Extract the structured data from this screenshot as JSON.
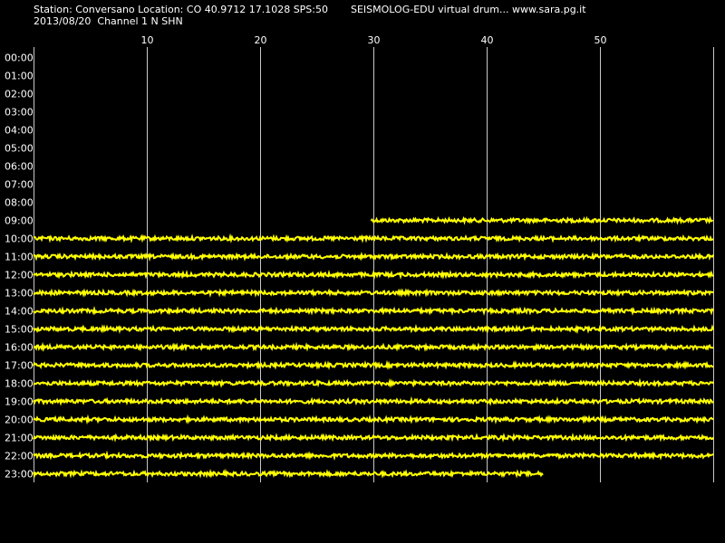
{
  "header": {
    "station_line": "Station: Conversano Location: CO 40.9712 17.1028 SPS:50",
    "software_line": "SEISMOLOG-EDU virtual drum... www.sara.pg.it",
    "date_line": "2013/08/20  Channel 1 N SHN"
  },
  "colors": {
    "background": "#000000",
    "grid": "#c8c8c8",
    "trace": "#ffff00",
    "text": "#ffffff"
  },
  "chart_data": {
    "type": "line",
    "title": "",
    "xlabel": "",
    "ylabel": "",
    "xlim": [
      0,
      60
    ],
    "x_ticks": [
      10,
      20,
      30,
      40,
      50
    ],
    "x_tick_labels": [
      "10",
      "20",
      "30",
      "40",
      "50"
    ],
    "grid": true,
    "rows": [
      {
        "label": "00:00",
        "start": null,
        "end": null
      },
      {
        "label": "01:00",
        "start": null,
        "end": null
      },
      {
        "label": "02:00",
        "start": null,
        "end": null
      },
      {
        "label": "03:00",
        "start": null,
        "end": null
      },
      {
        "label": "04:00",
        "start": null,
        "end": null
      },
      {
        "label": "05:00",
        "start": null,
        "end": null
      },
      {
        "label": "06:00",
        "start": null,
        "end": null
      },
      {
        "label": "07:00",
        "start": null,
        "end": null
      },
      {
        "label": "08:00",
        "start": null,
        "end": null
      },
      {
        "label": "09:00",
        "start": 29.8,
        "end": 60
      },
      {
        "label": "10:00",
        "start": 0,
        "end": 60
      },
      {
        "label": "11:00",
        "start": 0,
        "end": 60
      },
      {
        "label": "12:00",
        "start": 0,
        "end": 60
      },
      {
        "label": "13:00",
        "start": 0,
        "end": 60
      },
      {
        "label": "14:00",
        "start": 0,
        "end": 60
      },
      {
        "label": "15:00",
        "start": 0,
        "end": 60
      },
      {
        "label": "16:00",
        "start": 0,
        "end": 60
      },
      {
        "label": "17:00",
        "start": 0,
        "end": 60
      },
      {
        "label": "18:00",
        "start": 0,
        "end": 60
      },
      {
        "label": "19:00",
        "start": 0,
        "end": 60
      },
      {
        "label": "20:00",
        "start": 0,
        "end": 60
      },
      {
        "label": "21:00",
        "start": 0,
        "end": 60
      },
      {
        "label": "22:00",
        "start": 0,
        "end": 60
      },
      {
        "label": "23:00",
        "start": 0,
        "end": 45
      }
    ]
  }
}
